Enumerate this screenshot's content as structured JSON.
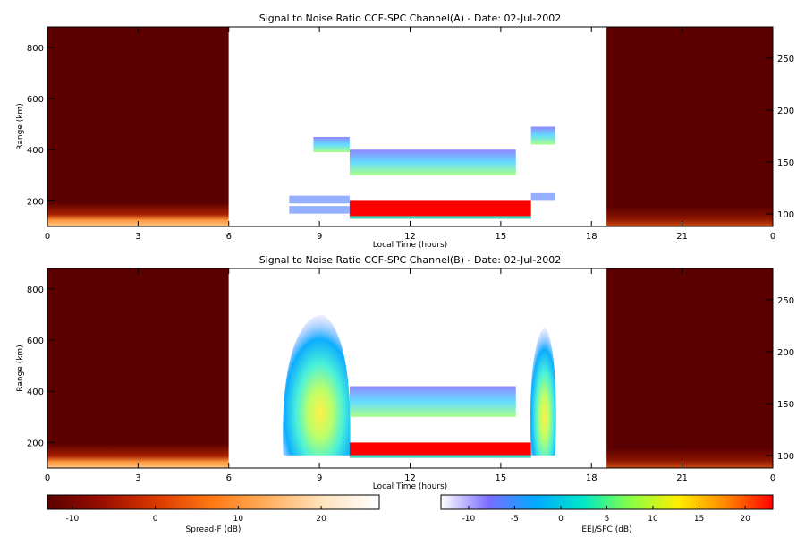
{
  "chart_data": [
    {
      "type": "heatmap",
      "title": "Signal to Noise Ratio CCF-SPC Channel(A) - Date: 02-Jul-2002",
      "xlabel": "Local Time (hours)",
      "ylabel": "Range (km)",
      "x_ticks": [
        "0",
        "3",
        "6",
        "9",
        "12",
        "15",
        "18",
        "21",
        "0"
      ],
      "y_ticks": [
        200,
        400,
        600,
        800
      ],
      "y2_ticks": [
        100,
        150,
        200,
        250
      ],
      "xlim": [
        0,
        24
      ],
      "ylim": [
        100,
        880
      ],
      "y2lim": [
        88,
        280
      ],
      "regions": [
        {
          "name": "spread-f-early",
          "x": [
            0,
            6
          ],
          "scale": "Spread-F"
        },
        {
          "name": "radar",
          "x": [
            6,
            18.5
          ],
          "scale": "EEJ/SPC",
          "features": [
            {
              "kind": "scatter",
              "x": [
                8.8,
                10
              ],
              "range": [
                390,
                450
              ],
              "level": 3
            },
            {
              "kind": "scatter",
              "x": [
                10,
                15.5
              ],
              "range": [
                300,
                400
              ],
              "level": 2
            },
            {
              "kind": "layer",
              "x": [
                8.0,
                10
              ],
              "range": [
                190,
                220
              ],
              "level": 3
            },
            {
              "kind": "layer",
              "x": [
                8.0,
                10
              ],
              "range": [
                150,
                180
              ],
              "level": 2
            },
            {
              "kind": "eej",
              "x": [
                10,
                16
              ],
              "range": [
                130,
                200
              ],
              "level": 25
            },
            {
              "kind": "scatter",
              "x": [
                16,
                16.8
              ],
              "range": [
                420,
                490
              ],
              "level": 3
            },
            {
              "kind": "layer",
              "x": [
                16,
                16.8
              ],
              "range": [
                200,
                230
              ],
              "level": 3
            }
          ]
        },
        {
          "name": "spread-f-late",
          "x": [
            18.5,
            24
          ],
          "scale": "Spread-F"
        }
      ]
    },
    {
      "type": "heatmap",
      "title": "Signal to Noise Ratio CCF-SPC Channel(B) - Date: 02-Jul-2002",
      "xlabel": "Local Time (hours)",
      "ylabel": "Range (km)",
      "x_ticks": [
        "0",
        "3",
        "6",
        "9",
        "12",
        "15",
        "18",
        "21",
        "0"
      ],
      "y_ticks": [
        200,
        400,
        600,
        800
      ],
      "y2_ticks": [
        100,
        150,
        200,
        250
      ],
      "xlim": [
        0,
        24
      ],
      "ylim": [
        100,
        880
      ],
      "y2lim": [
        88,
        280
      ],
      "regions": [
        {
          "name": "spread-f-early",
          "x": [
            0,
            6
          ],
          "scale": "Spread-F"
        },
        {
          "name": "radar",
          "x": [
            6,
            18.5
          ],
          "scale": "EEJ/SPC",
          "features": [
            {
              "kind": "plume",
              "x": [
                7.8,
                10
              ],
              "range": [
                150,
                700
              ],
              "level": 4
            },
            {
              "kind": "scatter",
              "x": [
                10,
                15.5
              ],
              "range": [
                300,
                420
              ],
              "level": 2
            },
            {
              "kind": "eej",
              "x": [
                10,
                16
              ],
              "range": [
                140,
                200
              ],
              "level": 25
            },
            {
              "kind": "plume",
              "x": [
                16,
                16.8
              ],
              "range": [
                150,
                650
              ],
              "level": 4
            }
          ]
        },
        {
          "name": "spread-f-late",
          "x": [
            18.5,
            24
          ],
          "scale": "Spread-F"
        }
      ]
    }
  ],
  "colorbars": [
    {
      "label": "Spread-F (dB)",
      "range": [
        -13,
        27
      ],
      "ticks": [
        -10,
        0,
        10,
        20
      ],
      "tick_labels": [
        "-10",
        "0",
        "10",
        "20"
      ],
      "colors": [
        "#5a0000",
        "#9a0e00",
        "#dc3a00",
        "#ff7a16",
        "#ffb060",
        "#ffe4c0",
        "#ffffff"
      ]
    },
    {
      "label": "EEJ/SPC (dB)",
      "range": [
        -13,
        23
      ],
      "ticks": [
        -10,
        -5,
        0,
        5,
        10,
        15,
        20
      ],
      "tick_labels": [
        "-10",
        "-5",
        "0",
        "5",
        "10",
        "15",
        "20"
      ],
      "colors": [
        "#ffffff",
        "#7a6cff",
        "#00aaff",
        "#00e8c8",
        "#88ff44",
        "#ffee00",
        "#ff8800",
        "#ff0000"
      ]
    }
  ],
  "colors": {
    "spread_f_bg": "#5b0000",
    "eej": "#ff0000",
    "background": "#ffffff"
  }
}
